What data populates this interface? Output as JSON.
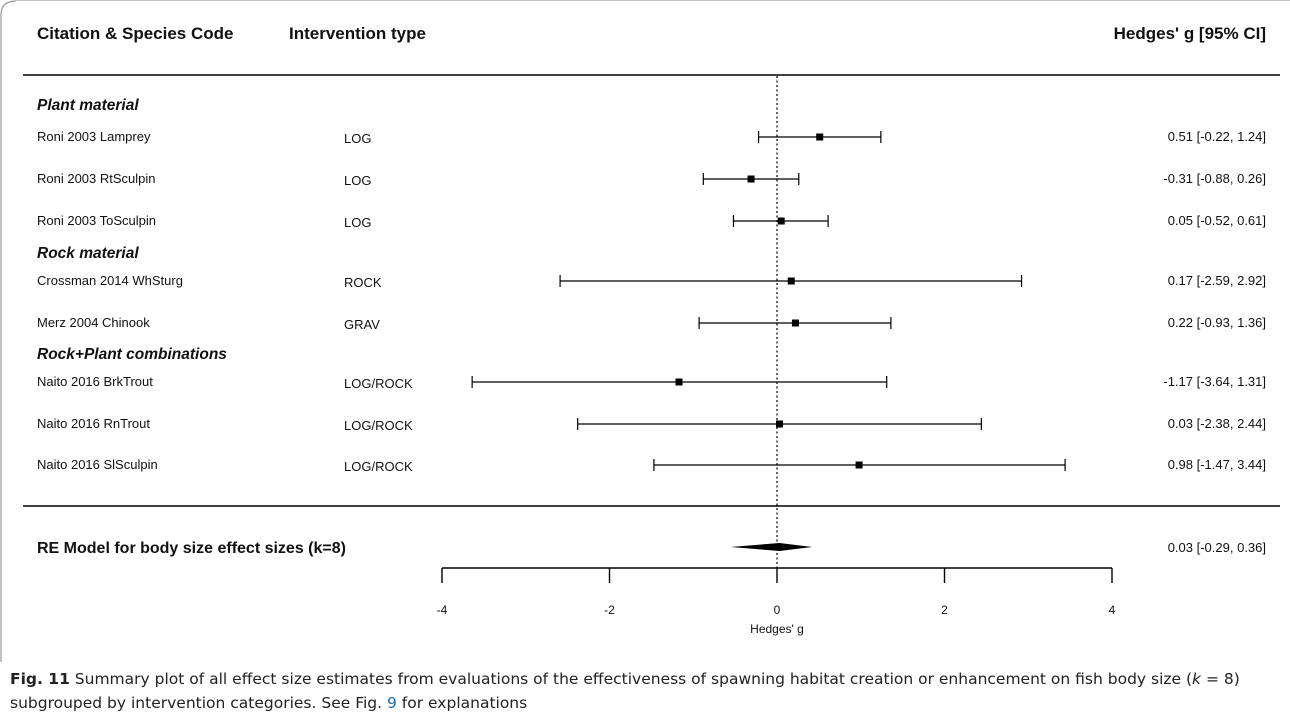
{
  "headers": {
    "citation": "Citation & Species Code",
    "intervention": "Intervention type",
    "effect": "Hedges' g [95% CI]"
  },
  "groups": [
    {
      "label": "Plant material",
      "start_index": 0
    },
    {
      "label": "Rock material",
      "start_index": 3
    },
    {
      "label": "Rock+Plant combinations",
      "start_index": 5
    }
  ],
  "chart_data": {
    "type": "forest",
    "xlabel": "Hedges' g",
    "xticks": [
      -4,
      -2,
      0,
      2,
      4
    ],
    "xlim": [
      -4,
      4
    ],
    "reference_line": 0,
    "studies": [
      {
        "label": "Roni 2003 Lamprey",
        "intervention": "LOG",
        "g": 0.51,
        "lo": -0.22,
        "hi": 1.24,
        "text": "0.51 [-0.22, 1.24]"
      },
      {
        "label": "Roni 2003 RtSculpin",
        "intervention": "LOG",
        "g": -0.31,
        "lo": -0.88,
        "hi": 0.26,
        "text": "-0.31 [-0.88, 0.26]"
      },
      {
        "label": "Roni 2003 ToSculpin",
        "intervention": "LOG",
        "g": 0.05,
        "lo": -0.52,
        "hi": 0.61,
        "text": "0.05 [-0.52, 0.61]"
      },
      {
        "label": "Crossman 2014 WhSturg",
        "intervention": "ROCK",
        "g": 0.17,
        "lo": -2.59,
        "hi": 2.92,
        "text": "0.17 [-2.59, 2.92]"
      },
      {
        "label": "Merz 2004 Chinook",
        "intervention": "GRAV",
        "g": 0.22,
        "lo": -0.93,
        "hi": 1.36,
        "text": "0.22 [-0.93, 1.36]"
      },
      {
        "label": "Naito 2016 BrkTrout",
        "intervention": "LOG/ROCK",
        "g": -1.17,
        "lo": -3.64,
        "hi": 1.31,
        "text": "-1.17 [-3.64, 1.31]"
      },
      {
        "label": "Naito 2016 RnTrout",
        "intervention": "LOG/ROCK",
        "g": 0.03,
        "lo": -2.38,
        "hi": 2.44,
        "text": "0.03 [-2.38, 2.44]"
      },
      {
        "label": "Naito 2016 SlSculpin",
        "intervention": "LOG/ROCK",
        "g": 0.98,
        "lo": -1.47,
        "hi": 3.44,
        "text": "0.98 [-1.47, 3.44]"
      }
    ],
    "summary": {
      "label": "RE Model for body size effect sizes (k=8)",
      "g": 0.03,
      "lo": -0.29,
      "hi": 0.36,
      "text": "0.03 [-0.29, 0.36]"
    }
  },
  "caption": {
    "fig_label": "Fig. 11",
    "text_1": " Summary plot of all effect size estimates from evaluations of the effectiveness of spawning habitat creation or enhancement on fish body size (",
    "k_text": "k",
    "text_2": " = 8) subgrouped by intervention categories. See Fig. ",
    "fig_ref": "9",
    "text_3": " for explanations"
  }
}
